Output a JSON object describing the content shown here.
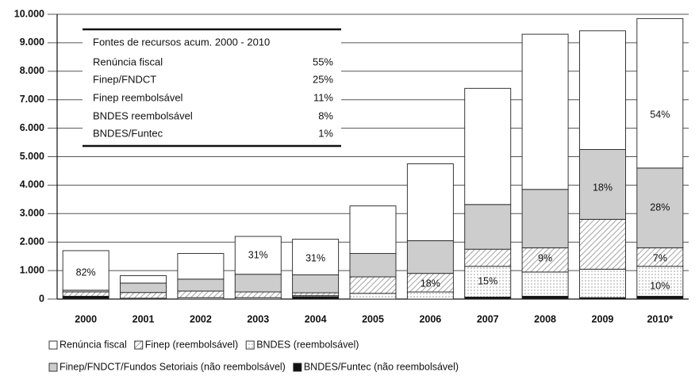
{
  "chart_data": {
    "type": "stacked_bar",
    "categories": [
      "2000",
      "2001",
      "2002",
      "2003",
      "2004",
      "2005",
      "2006",
      "2007",
      "2008",
      "2009",
      "2010*"
    ],
    "series": [
      {
        "name": "Renúncia fiscal",
        "color": "#ffffff",
        "pattern": "solid",
        "values": [
          1390,
          260,
          900,
          1330,
          1250,
          1670,
          2700,
          4080,
          5450,
          4170,
          5250
        ]
      },
      {
        "name": "Finep (reembolsável)",
        "color": "#8c8c8c",
        "pattern": "hatch",
        "values": [
          150,
          200,
          230,
          200,
          100,
          580,
          650,
          600,
          850,
          1750,
          650
        ]
      },
      {
        "name": "BNDES (reembolsável)",
        "color": "#8c8c8c",
        "pattern": "dots",
        "values": [
          0,
          30,
          50,
          50,
          40,
          200,
          250,
          1080,
          850,
          1000,
          1050
        ]
      },
      {
        "name": "Finep/FNDCT/Fundos Setoriais (não reembolsável)",
        "color": "#cdcdcd",
        "pattern": "solid",
        "values": [
          60,
          330,
          420,
          620,
          630,
          820,
          1150,
          1570,
          2050,
          2450,
          2800
        ]
      },
      {
        "name": "BNDES/Funtec (não reembolsável)",
        "color": "#111111",
        "pattern": "solid",
        "values": [
          100,
          0,
          0,
          0,
          80,
          0,
          0,
          70,
          100,
          50,
          100
        ]
      }
    ],
    "ylim": [
      0,
      10000
    ],
    "yticks": [
      0,
      {
        "value": 1000,
        "label": "1.000"
      },
      {
        "value": 2000,
        "label": "2.000"
      },
      {
        "value": 3000,
        "label": "3.000"
      },
      {
        "value": 4000,
        "label": "4.000"
      },
      {
        "value": 5000,
        "label": "5.000"
      },
      {
        "value": 6000,
        "label": "6.000"
      },
      {
        "value": 7000,
        "label": "7.000"
      },
      {
        "value": 8000,
        "label": "8.000"
      },
      {
        "value": 9000,
        "label": "9.000"
      },
      {
        "value": 10000,
        "label": "10.000"
      }
    ],
    "grid": true,
    "annotations": [
      "82%",
      "31%",
      "31%",
      "18%",
      "15%",
      "9%",
      "18%",
      "54%",
      "28%",
      "7%",
      "10%"
    ],
    "inset_table": {
      "title": "Fontes de recursos acum. 2000 - 2010",
      "rows": [
        [
          "Renúncia fiscal",
          "55%"
        ],
        [
          "Finep/FNDCT",
          "25%"
        ],
        [
          "Finep reembolsável",
          "11%"
        ],
        [
          "BNDES reembolsável",
          "8%"
        ],
        [
          "BNDES/Funtec",
          "1%"
        ]
      ]
    }
  }
}
